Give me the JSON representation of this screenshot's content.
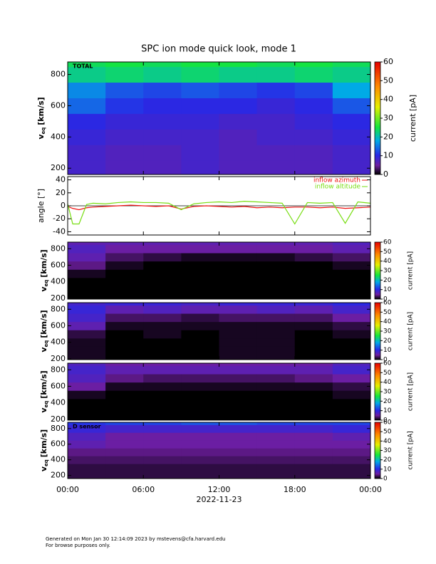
{
  "chart_data": [
    {
      "type": "heatmap",
      "title": "SPC ion mode quick look, mode 1",
      "label": "TOTAL",
      "ylabel": "v",
      "ylabel_sub": "eq",
      "ylabel_unit": "[km/s]",
      "xlim": [
        0,
        24
      ],
      "xticks": [
        0,
        6,
        12,
        18,
        24
      ],
      "ylim": [
        160,
        880
      ],
      "yticks": [
        200,
        400,
        600,
        800
      ],
      "t_bins": [
        0,
        3,
        6,
        9,
        12,
        15,
        18,
        21,
        24
      ],
      "v_bins": [
        160,
        250,
        350,
        450,
        550,
        650,
        750,
        850,
        880
      ],
      "z": [
        [
          8,
          8,
          9,
          10,
          14,
          16,
          22,
          24
        ],
        [
          7,
          7,
          8,
          9,
          11,
          13,
          23,
          25
        ],
        [
          7,
          7,
          8,
          9,
          10,
          12,
          22,
          24
        ],
        [
          8,
          8,
          8,
          9,
          10,
          13,
          23,
          25
        ],
        [
          7,
          7,
          7,
          8,
          10,
          12,
          22,
          25
        ],
        [
          7,
          7,
          8,
          8,
          9,
          11,
          22,
          24
        ],
        [
          7,
          7,
          8,
          9,
          10,
          12,
          23,
          25
        ],
        [
          8,
          8,
          9,
          10,
          13,
          18,
          22,
          24
        ]
      ],
      "clim": [
        0,
        60
      ],
      "cticks": [
        0,
        10,
        20,
        30,
        40,
        50,
        60
      ],
      "clabel": "current [pA]"
    },
    {
      "type": "line",
      "ylabel": "angle [°]",
      "xlim": [
        0,
        24
      ],
      "xticks": [
        0,
        6,
        12,
        18,
        24
      ],
      "ylim": [
        -45,
        45
      ],
      "yticks": [
        -40,
        -20,
        0,
        20,
        40
      ],
      "x": [
        0,
        0.4,
        0.9,
        1.5,
        2,
        3,
        4,
        5,
        6,
        7,
        8,
        9,
        10,
        11,
        12,
        13,
        14,
        15,
        16,
        17,
        18,
        19,
        20,
        21,
        22,
        23,
        24
      ],
      "series": [
        {
          "name": "inflow azimuth",
          "color": "#ee1111",
          "values": [
            -1,
            -4,
            -6,
            -3,
            -2,
            -1,
            0,
            1,
            0,
            -1,
            0,
            -5,
            -1,
            0,
            -1,
            -2,
            -1,
            -3,
            -2,
            -3,
            -2,
            -2,
            -3,
            -2,
            -4,
            -3,
            -2
          ]
        },
        {
          "name": "inflow altitude",
          "color": "#77dd11",
          "values": [
            3,
            -28,
            -28,
            2,
            4,
            3,
            5,
            6,
            5,
            5,
            4,
            -6,
            3,
            5,
            6,
            5,
            7,
            6,
            5,
            4,
            -28,
            5,
            4,
            5,
            -27,
            6,
            4
          ]
        }
      ]
    },
    {
      "type": "heatmap",
      "ylabel": "v",
      "ylabel_sub": "eq",
      "ylabel_unit": "[km/s]",
      "xlim": [
        0,
        24
      ],
      "xticks": [
        0,
        6,
        12,
        18,
        24
      ],
      "ylim": [
        190,
        880
      ],
      "yticks": [
        200,
        400,
        600,
        800
      ],
      "t_bins": [
        0,
        3,
        6,
        9,
        12,
        15,
        18,
        21,
        24
      ],
      "v_bins": [
        190,
        250,
        350,
        450,
        550,
        650,
        750,
        850,
        880
      ],
      "z": [
        [
          0,
          0,
          0,
          1,
          4,
          6,
          7,
          6
        ],
        [
          0,
          0,
          0,
          0,
          1,
          3,
          5,
          6
        ],
        [
          0,
          0,
          0,
          0,
          0,
          2,
          5,
          6
        ],
        [
          0,
          0,
          0,
          0,
          0,
          1,
          5,
          6
        ],
        [
          0,
          0,
          0,
          0,
          0,
          1,
          5,
          6
        ],
        [
          0,
          0,
          0,
          0,
          0,
          1,
          5,
          6
        ],
        [
          0,
          0,
          0,
          0,
          0,
          2,
          5,
          6
        ],
        [
          0,
          0,
          0,
          0,
          1,
          3,
          6,
          7
        ]
      ],
      "clim": [
        0,
        60
      ],
      "cticks": [
        0,
        10,
        20,
        30,
        40,
        50,
        60
      ],
      "clabel": "current [pA]"
    },
    {
      "type": "heatmap",
      "ylabel": "v",
      "ylabel_sub": "eq",
      "ylabel_unit": "[km/s]",
      "xlim": [
        0,
        24
      ],
      "xticks": [
        0,
        6,
        12,
        18,
        24
      ],
      "ylim": [
        190,
        880
      ],
      "yticks": [
        200,
        400,
        600,
        800
      ],
      "t_bins": [
        0,
        3,
        6,
        9,
        12,
        15,
        18,
        21,
        24
      ],
      "v_bins": [
        190,
        250,
        350,
        450,
        550,
        650,
        750,
        850,
        880
      ],
      "z": [
        [
          1,
          1,
          1,
          2,
          6,
          8,
          9,
          8
        ],
        [
          0,
          0,
          0,
          0,
          1,
          3,
          6,
          9
        ],
        [
          0,
          0,
          0,
          1,
          1,
          3,
          7,
          9
        ],
        [
          0,
          0,
          0,
          0,
          1,
          2,
          6,
          8
        ],
        [
          1,
          1,
          1,
          1,
          1,
          3,
          6,
          9
        ],
        [
          1,
          1,
          1,
          1,
          1,
          3,
          7,
          9
        ],
        [
          0,
          0,
          0,
          0,
          1,
          3,
          6,
          9
        ],
        [
          0,
          0,
          0,
          1,
          2,
          5,
          8,
          10
        ]
      ],
      "clim": [
        0,
        60
      ],
      "cticks": [
        0,
        10,
        20,
        30,
        40,
        50,
        60
      ],
      "clabel": "current [pA]"
    },
    {
      "type": "heatmap",
      "ylabel": "v",
      "ylabel_sub": "eq",
      "ylabel_unit": "[km/s]",
      "xlim": [
        0,
        24
      ],
      "xticks": [
        0,
        6,
        12,
        18,
        24
      ],
      "ylim": [
        190,
        880
      ],
      "yticks": [
        200,
        400,
        600,
        800
      ],
      "t_bins": [
        0,
        3,
        6,
        9,
        12,
        15,
        18,
        21,
        24
      ],
      "v_bins": [
        190,
        250,
        350,
        450,
        550,
        650,
        750,
        850,
        880
      ],
      "z": [
        [
          0,
          0,
          0,
          1,
          5,
          7,
          8,
          7
        ],
        [
          0,
          0,
          0,
          0,
          1,
          4,
          6,
          5
        ],
        [
          0,
          0,
          0,
          0,
          1,
          3,
          6,
          5
        ],
        [
          0,
          0,
          0,
          0,
          1,
          3,
          6,
          5
        ],
        [
          0,
          0,
          0,
          0,
          1,
          3,
          6,
          5
        ],
        [
          0,
          0,
          0,
          0,
          1,
          3,
          6,
          5
        ],
        [
          0,
          0,
          0,
          0,
          1,
          4,
          6,
          5
        ],
        [
          0,
          0,
          0,
          1,
          2,
          5,
          8,
          7
        ]
      ],
      "clim": [
        0,
        60
      ],
      "cticks": [
        0,
        10,
        20,
        30,
        40,
        50,
        60
      ],
      "clabel": "current [pA]"
    },
    {
      "type": "heatmap",
      "label": "D sensor",
      "ylabel": "v",
      "ylabel_sub": "eq",
      "ylabel_unit": "[km/s]",
      "xlim": [
        0,
        24
      ],
      "xticks": [
        {
          "value": 0,
          "label": "00:00"
        },
        {
          "value": 6,
          "label": "06:00"
        },
        {
          "value": 12,
          "label": "12:00"
        },
        {
          "value": 18,
          "label": "18:00"
        },
        {
          "value": 24,
          "label": "00:00"
        }
      ],
      "xlabel": "2022-11-23",
      "ylim": [
        160,
        880
      ],
      "yticks": [
        200,
        400,
        600,
        800
      ],
      "t_bins": [
        0,
        3,
        6,
        9,
        12,
        15,
        18,
        21,
        24
      ],
      "v_bins": [
        160,
        250,
        350,
        450,
        550,
        650,
        750,
        850,
        880
      ],
      "z": [
        [
          2,
          2,
          3,
          4,
          6,
          7,
          9,
          11
        ],
        [
          2,
          2,
          3,
          4,
          5,
          5,
          8,
          12
        ],
        [
          2,
          2,
          3,
          4,
          5,
          5,
          8,
          12
        ],
        [
          2,
          2,
          3,
          4,
          5,
          5,
          8,
          13
        ],
        [
          2,
          2,
          3,
          4,
          5,
          5,
          8,
          13
        ],
        [
          2,
          2,
          3,
          4,
          5,
          5,
          8,
          12
        ],
        [
          2,
          2,
          3,
          4,
          5,
          5,
          8,
          12
        ],
        [
          2,
          2,
          3,
          4,
          5,
          6,
          9,
          12
        ]
      ],
      "clim": [
        0,
        60
      ],
      "cticks": [
        0,
        10,
        20,
        30,
        40,
        50,
        60
      ],
      "clabel": "current [pA]"
    }
  ],
  "footer": [
    "Generated on Mon Jan 30 12:14:09 2023 by mstevens@cfa.harvard.edu",
    "For browse purposes only."
  ]
}
